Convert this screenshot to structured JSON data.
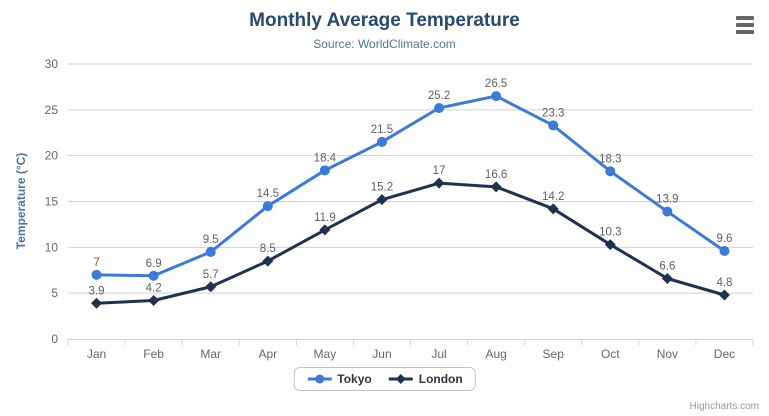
{
  "chart_data": {
    "type": "line",
    "title": "Monthly Average Temperature",
    "subtitle": "Source: WorldClimate.com",
    "xlabel": "",
    "ylabel": "Temperature (°C)",
    "ylim": [
      0,
      30
    ],
    "yticks": [
      0,
      5,
      10,
      15,
      20,
      25,
      30
    ],
    "grid": true,
    "data_labels": true,
    "legend_position": "bottom",
    "categories": [
      "Jan",
      "Feb",
      "Mar",
      "Apr",
      "May",
      "Jun",
      "Jul",
      "Aug",
      "Sep",
      "Oct",
      "Nov",
      "Dec"
    ],
    "series": [
      {
        "name": "Tokyo",
        "marker": "circle",
        "color": "#3b7ad9",
        "values": [
          7,
          6.9,
          9.5,
          14.5,
          18.4,
          21.5,
          25.2,
          26.5,
          23.3,
          18.3,
          13.9,
          9.6
        ]
      },
      {
        "name": "London",
        "marker": "diamond",
        "color": "#1f3350",
        "values": [
          3.9,
          4.2,
          5.7,
          8.5,
          11.9,
          15.2,
          17,
          16.6,
          14.2,
          10.3,
          6.6,
          4.8
        ]
      }
    ]
  },
  "style_colors": {
    "title": "#274b6d",
    "subtitle": "#4d759e",
    "axis_label": "#666666",
    "data_label": "#606060",
    "gridline": "#d2d2d2",
    "axis_line": "#ccd6eb",
    "menu_icon": "#666666"
  },
  "menu": {
    "icon": "hamburger-menu-icon"
  },
  "footer": {
    "credits_label": "Highcharts.com"
  }
}
